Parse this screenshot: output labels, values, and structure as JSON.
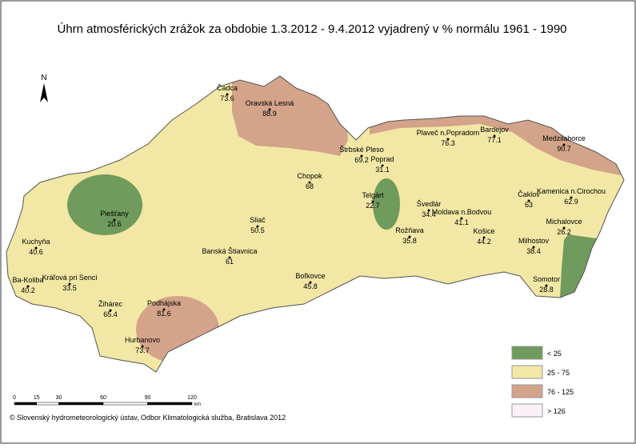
{
  "title": "Úhrn atmosférických zrážok za obdobie 1.3.2012 - 9.4.2012 vyjadrený v % normálu 1961 - 1990",
  "north": "N",
  "stations": [
    {
      "name": "Čadca",
      "value": 73.6
    },
    {
      "name": "Oravská Lesná",
      "value": 88.9
    },
    {
      "name": "Štrbské Pleso",
      "value": 69.2
    },
    {
      "name": "Poprad",
      "value": 31.1
    },
    {
      "name": "Chopok",
      "value": 68
    },
    {
      "name": "Telgárt",
      "value": 22.7
    },
    {
      "name": "Plaveč n.Popradom",
      "value": 76.3
    },
    {
      "name": "Bardejov",
      "value": 77.1
    },
    {
      "name": "Medzilaborce",
      "value": 90.7
    },
    {
      "name": "Čaklov",
      "value": 63
    },
    {
      "name": "Kamenica n.Cirochou",
      "value": 62.9
    },
    {
      "name": "Švedlár",
      "value": 34.4
    },
    {
      "name": "Moldava n.Bodvou",
      "value": 41.1
    },
    {
      "name": "Košice",
      "value": 44.2
    },
    {
      "name": "Michalovce",
      "value": 26.2
    },
    {
      "name": "Milhostov",
      "value": 38.4
    },
    {
      "name": "Somotor",
      "value": 28.8
    },
    {
      "name": "Rožňava",
      "value": 35.8
    },
    {
      "name": "Sliač",
      "value": 50.5
    },
    {
      "name": "Piešťany",
      "value": 20.6
    },
    {
      "name": "Kuchyňa",
      "value": 40.6
    },
    {
      "name": "Banská Štiavnica",
      "value": 61
    },
    {
      "name": "Ba-Koliba",
      "value": 40.2
    },
    {
      "name": "Kráľová pri Senci",
      "value": 33.5
    },
    {
      "name": "Boľkovce",
      "value": 45.8
    },
    {
      "name": "Žihárec",
      "value": 65.4
    },
    {
      "name": "Podhájska",
      "value": 81.6
    },
    {
      "name": "Hurbanovo",
      "value": 73.7
    }
  ],
  "legend": [
    {
      "label": "< 25",
      "color": "#6f9b5c"
    },
    {
      "label": "25 - 75",
      "color": "#f2e7a4"
    },
    {
      "label": "76 - 125",
      "color": "#d3a38a"
    },
    {
      "label": "> 126",
      "color": "#fbf0f8"
    }
  ],
  "scale": {
    "ticks": [
      0,
      15,
      30,
      60,
      90,
      120
    ],
    "unit": "km"
  },
  "credit": "© Slovenský hydrometeorologický ústav, Odbor Klimatologická služba, Bratislava 2012"
}
